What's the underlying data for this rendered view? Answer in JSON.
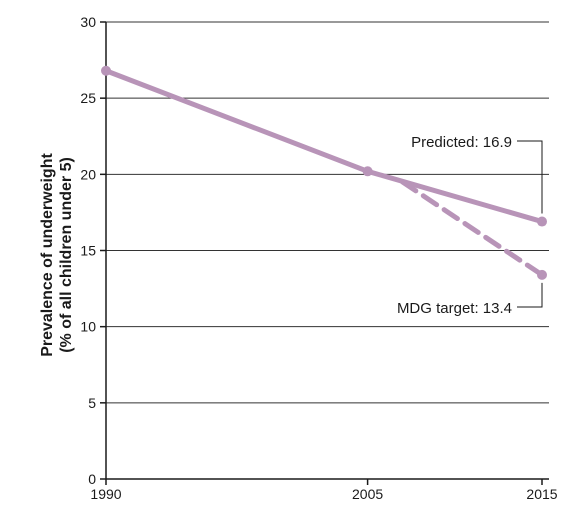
{
  "chart_data": {
    "type": "line",
    "title": "",
    "xlabel": "",
    "ylabel_lines": [
      "Prevalence of underweight",
      "(% of all children under 5)"
    ],
    "x_ticks": [
      1990,
      2005,
      2015
    ],
    "y_ticks": [
      0,
      5,
      10,
      15,
      20,
      25,
      30
    ],
    "xlim": [
      1990,
      2015
    ],
    "ylim": [
      0,
      30
    ],
    "grid": "horizontal",
    "series_color": "#b894b8",
    "series": [
      {
        "style": "solid",
        "x": [
          1990,
          2005,
          2015
        ],
        "y": [
          26.8,
          20.2,
          16.9
        ]
      },
      {
        "style": "dashed",
        "x": [
          2007,
          2015
        ],
        "y": [
          19.5,
          13.4
        ]
      }
    ],
    "annotations": [
      {
        "text": "Predicted: 16.9",
        "x": 2015,
        "y": 16.9
      },
      {
        "text": "MDG target: 13.4",
        "x": 2015,
        "y": 13.4
      }
    ]
  }
}
